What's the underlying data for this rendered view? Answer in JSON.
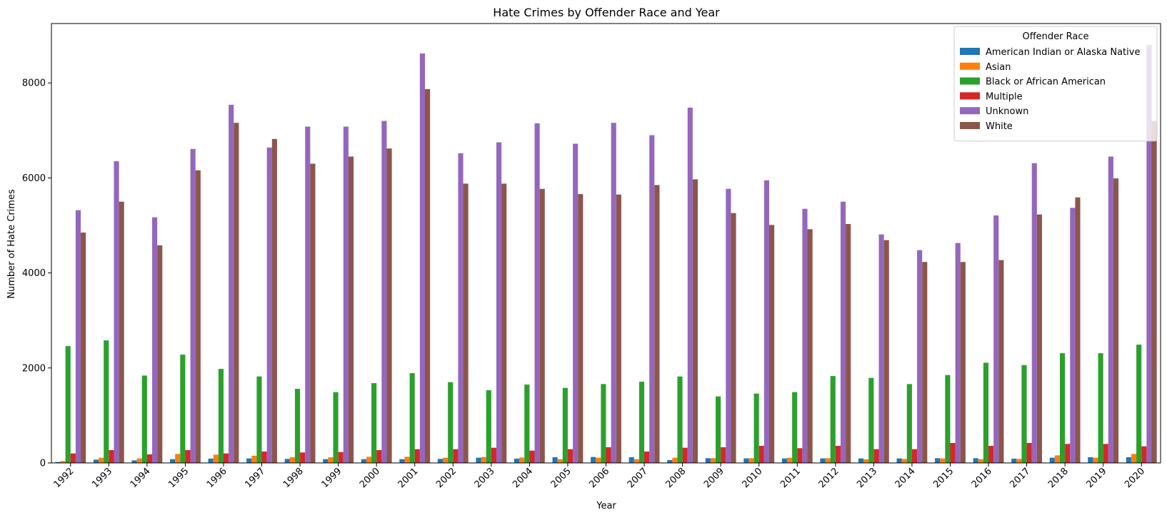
{
  "chart_data": {
    "type": "bar",
    "title": "Hate Crimes by Offender Race and Year",
    "xlabel": "Year",
    "ylabel": "Number of Hate Crimes",
    "ylim": [
      0,
      9250
    ],
    "yticks": [
      0,
      2000,
      4000,
      6000,
      8000
    ],
    "grid": false,
    "legend_placement": "top-right",
    "legend_title": "Offender Race",
    "categories": [
      "1992",
      "1993",
      "1994",
      "1995",
      "1996",
      "1997",
      "1998",
      "1999",
      "2000",
      "2001",
      "2002",
      "2003",
      "2004",
      "2005",
      "2006",
      "2007",
      "2008",
      "2009",
      "2010",
      "2011",
      "2012",
      "2013",
      "2014",
      "2015",
      "2016",
      "2017",
      "2018",
      "2019",
      "2020"
    ],
    "series": [
      {
        "name": "American Indian or Alaska Native",
        "color": "#1f77b4",
        "values": [
          20,
          70,
          55,
          80,
          90,
          95,
          85,
          80,
          80,
          80,
          85,
          110,
          90,
          120,
          125,
          120,
          60,
          100,
          95,
          95,
          95,
          95,
          95,
          100,
          100,
          90,
          110,
          120,
          120
        ]
      },
      {
        "name": "Asian",
        "color": "#ff7f0e",
        "values": [
          40,
          110,
          95,
          190,
          175,
          150,
          120,
          120,
          130,
          130,
          110,
          125,
          115,
          80,
          110,
          80,
          110,
          100,
          100,
          110,
          100,
          75,
          85,
          95,
          80,
          85,
          160,
          110,
          190
        ]
      },
      {
        "name": "Black or African American",
        "color": "#2ca02c",
        "values": [
          2460,
          2580,
          1840,
          2280,
          1980,
          1820,
          1560,
          1490,
          1680,
          1890,
          1700,
          1530,
          1650,
          1580,
          1660,
          1710,
          1820,
          1400,
          1460,
          1490,
          1830,
          1790,
          1660,
          1850,
          2110,
          2060,
          2310,
          2310,
          2490
        ]
      },
      {
        "name": "Multiple",
        "color": "#d62728",
        "values": [
          200,
          270,
          180,
          270,
          200,
          240,
          220,
          230,
          270,
          290,
          290,
          320,
          260,
          290,
          330,
          240,
          320,
          330,
          360,
          310,
          360,
          290,
          290,
          420,
          360,
          420,
          400,
          400,
          350
        ]
      },
      {
        "name": "Unknown",
        "color": "#9467bd",
        "values": [
          5320,
          6350,
          5170,
          6610,
          7540,
          6640,
          7080,
          7080,
          7200,
          8620,
          6520,
          6750,
          7150,
          6720,
          7160,
          6900,
          7480,
          5770,
          5950,
          5350,
          5500,
          4810,
          4480,
          4630,
          5210,
          6310,
          5370,
          6450,
          8800
        ]
      },
      {
        "name": "White",
        "color": "#8c564b",
        "values": [
          4850,
          5500,
          4580,
          6160,
          7160,
          6820,
          6300,
          6450,
          6620,
          7870,
          5880,
          5880,
          5770,
          5660,
          5650,
          5850,
          5970,
          5260,
          5010,
          4920,
          5030,
          4690,
          4230,
          4230,
          4270,
          5230,
          5590,
          5990,
          7200
        ]
      }
    ]
  }
}
